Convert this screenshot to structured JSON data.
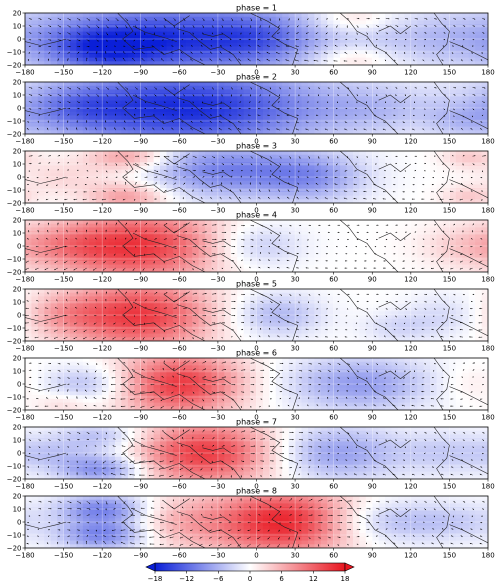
{
  "chart_data": {
    "type": "heatmap",
    "xticks": [
      -180,
      -150,
      -120,
      -90,
      -60,
      -30,
      0,
      30,
      60,
      90,
      120,
      150,
      180
    ],
    "yticks": [
      20,
      10,
      0,
      -10,
      -20
    ],
    "xlim": [
      -180,
      180
    ],
    "ylim": [
      -20,
      20
    ],
    "grid": true,
    "colormap": {
      "low": "#0a1fd8",
      "mid": "#ffffff",
      "high": "#e8141e"
    },
    "colorbar": {
      "ticks": [
        -18,
        -12,
        -6,
        0,
        6,
        12,
        18
      ],
      "range": [
        -18,
        18
      ],
      "extend": "both",
      "orientation": "horizontal"
    },
    "panels": [
      {
        "title": "phase = 1",
        "blobs": [
          [
            -60,
            0,
            80,
            20,
            -16
          ],
          [
            -120,
            -8,
            30,
            12,
            -8
          ],
          [
            75,
            15,
            22,
            8,
            5
          ],
          [
            75,
            -15,
            22,
            8,
            5
          ],
          [
            130,
            0,
            40,
            15,
            -4
          ],
          [
            0,
            0,
            25,
            12,
            -3
          ]
        ]
      },
      {
        "title": "phase = 2",
        "blobs": [
          [
            -55,
            0,
            75,
            22,
            -17
          ],
          [
            -140,
            0,
            30,
            12,
            -5
          ],
          [
            100,
            0,
            40,
            14,
            -4
          ],
          [
            160,
            -10,
            20,
            8,
            -3
          ]
        ]
      },
      {
        "title": "phase = 3",
        "blobs": [
          [
            -25,
            5,
            45,
            15,
            -10
          ],
          [
            -100,
            15,
            22,
            8,
            8
          ],
          [
            -100,
            -15,
            22,
            8,
            8
          ],
          [
            45,
            0,
            30,
            14,
            -7
          ],
          [
            165,
            15,
            15,
            6,
            4
          ],
          [
            165,
            -15,
            15,
            6,
            4
          ],
          [
            -150,
            0,
            25,
            10,
            3
          ]
        ]
      },
      {
        "title": "phase = 4",
        "blobs": [
          [
            -90,
            0,
            45,
            20,
            15
          ],
          [
            -150,
            0,
            30,
            12,
            5
          ],
          [
            0,
            0,
            25,
            12,
            -5
          ],
          [
            160,
            0,
            25,
            12,
            3
          ]
        ]
      },
      {
        "title": "phase = 5",
        "blobs": [
          [
            -90,
            0,
            40,
            20,
            15
          ],
          [
            -150,
            0,
            25,
            12,
            5
          ],
          [
            15,
            0,
            25,
            12,
            -6
          ],
          [
            150,
            0,
            25,
            12,
            -3
          ],
          [
            110,
            -10,
            20,
            8,
            -3
          ]
        ]
      },
      {
        "title": "phase = 6",
        "blobs": [
          [
            -60,
            0,
            35,
            18,
            15
          ],
          [
            -130,
            0,
            25,
            10,
            -6
          ],
          [
            80,
            0,
            40,
            15,
            -8
          ],
          [
            170,
            0,
            20,
            10,
            2
          ],
          [
            -150,
            -15,
            15,
            6,
            3
          ]
        ]
      },
      {
        "title": "phase = 7",
        "blobs": [
          [
            -40,
            0,
            40,
            18,
            15
          ],
          [
            -120,
            -12,
            25,
            8,
            -10
          ],
          [
            -120,
            12,
            25,
            8,
            -6
          ],
          [
            60,
            0,
            35,
            15,
            -8
          ],
          [
            150,
            0,
            30,
            12,
            -4
          ],
          [
            -160,
            0,
            20,
            8,
            -3
          ]
        ]
      },
      {
        "title": "phase = 8",
        "blobs": [
          [
            20,
            10,
            40,
            12,
            12
          ],
          [
            20,
            -10,
            40,
            12,
            12
          ],
          [
            -120,
            10,
            25,
            8,
            -10
          ],
          [
            -120,
            -10,
            25,
            8,
            -10
          ],
          [
            100,
            0,
            35,
            12,
            -6
          ],
          [
            -60,
            0,
            25,
            15,
            5
          ],
          [
            160,
            0,
            25,
            10,
            -3
          ]
        ]
      }
    ]
  }
}
